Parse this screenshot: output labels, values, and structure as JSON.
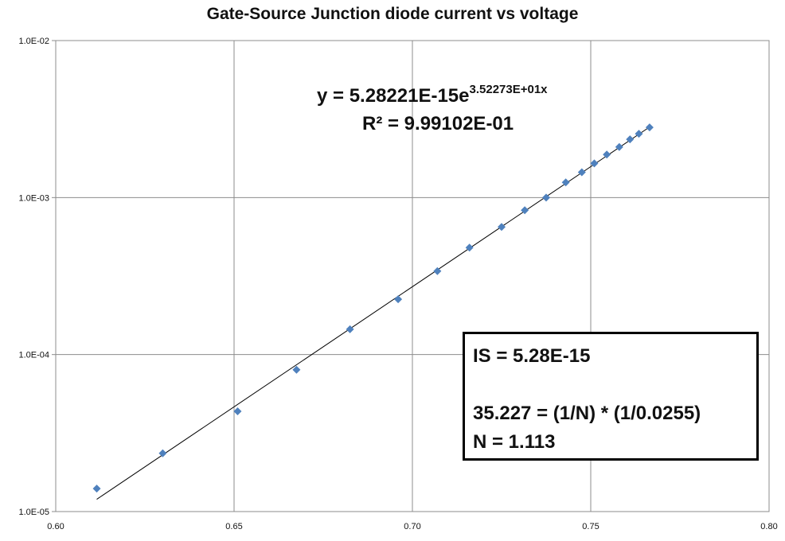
{
  "chart_data": {
    "type": "scatter",
    "title": "Gate-Source Junction diode current vs voltage",
    "xlabel": "",
    "ylabel": "",
    "x_scale": "linear",
    "y_scale": "log",
    "xlim": [
      0.6,
      0.8
    ],
    "ylim": [
      1e-05,
      0.01
    ],
    "x_ticks": [
      "0.60",
      "0.65",
      "0.70",
      "0.75",
      "0.80"
    ],
    "x_tick_values": [
      0.6,
      0.65,
      0.7,
      0.75,
      0.8
    ],
    "y_ticks": [
      "1.0E-05",
      "1.0E-04",
      "1.0E-03",
      "1.0E-02"
    ],
    "y_tick_values": [
      1e-05,
      0.0001,
      0.001,
      0.01
    ],
    "grid": true,
    "legend": "none",
    "marker_color": "#4f81bd",
    "trendline_color": "#000000",
    "series": [
      {
        "points": [
          {
            "x": 0.6115,
            "y": 1.4e-05
          },
          {
            "x": 0.63,
            "y": 2.35e-05
          },
          {
            "x": 0.651,
            "y": 4.35e-05
          },
          {
            "x": 0.6675,
            "y": 8e-05
          },
          {
            "x": 0.6825,
            "y": 0.000145
          },
          {
            "x": 0.696,
            "y": 0.000225
          },
          {
            "x": 0.707,
            "y": 0.00034
          },
          {
            "x": 0.716,
            "y": 0.00048
          },
          {
            "x": 0.725,
            "y": 0.00065
          },
          {
            "x": 0.7315,
            "y": 0.00083
          },
          {
            "x": 0.7375,
            "y": 0.001
          },
          {
            "x": 0.743,
            "y": 0.00125
          },
          {
            "x": 0.7475,
            "y": 0.00145
          },
          {
            "x": 0.751,
            "y": 0.00165
          },
          {
            "x": 0.7545,
            "y": 0.00188
          },
          {
            "x": 0.758,
            "y": 0.0021
          },
          {
            "x": 0.761,
            "y": 0.00235
          },
          {
            "x": 0.7635,
            "y": 0.00255
          },
          {
            "x": 0.7665,
            "y": 0.0028
          }
        ]
      }
    ],
    "trendline": {
      "type": "exponential",
      "a": 5.28221e-15,
      "b": 35.2273,
      "x_range": [
        0.6115,
        0.7665
      ]
    },
    "annotations": {
      "equation_main": "y = 5.28221E-15e",
      "equation_exp": "3.52273E+01x",
      "r_squared": "R² = 9.99102E-01",
      "note_lines": [
        "IS = 5.28E-15",
        "",
        "35.227 = (1/N) * (1/0.0255)",
        "N = 1.113"
      ]
    }
  }
}
